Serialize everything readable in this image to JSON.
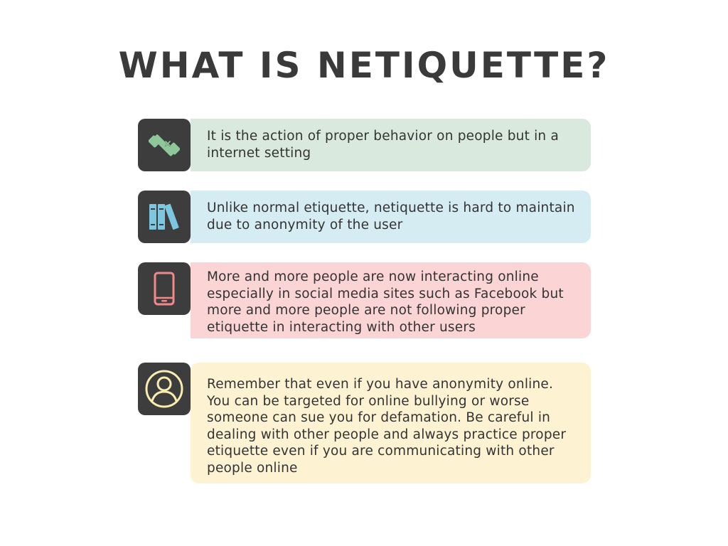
{
  "page": {
    "title": "WHAT IS NETIQUETTE?"
  },
  "items": [
    {
      "icon": "phone-handset-icon",
      "color": "#d9e9dd",
      "icon_color": "#8fc79a",
      "text": "It is the action of proper behavior on people but in a internet setting"
    },
    {
      "icon": "books-icon",
      "color": "#d6ecf3",
      "icon_color": "#7cc6e0",
      "text": "Unlike normal etiquette, netiquette is hard to maintain due to anonymity of the user"
    },
    {
      "icon": "smartphone-icon",
      "color": "#fbd5d5",
      "icon_color": "#f08a8a",
      "text": "More and more people are now interacting online especially in social media sites such as Facebook but more and more people are not following proper etiquette in interacting with other users"
    },
    {
      "icon": "user-profile-icon",
      "color": "#fdf3d3",
      "icon_color": "#f8ecb0",
      "text": "Remember that even if you have anonymity online. You can be targeted for online bullying or worse someone can sue you for defamation. Be careful in dealing with other people and always practice proper etiquette even if you are communicating with other people online"
    }
  ]
}
